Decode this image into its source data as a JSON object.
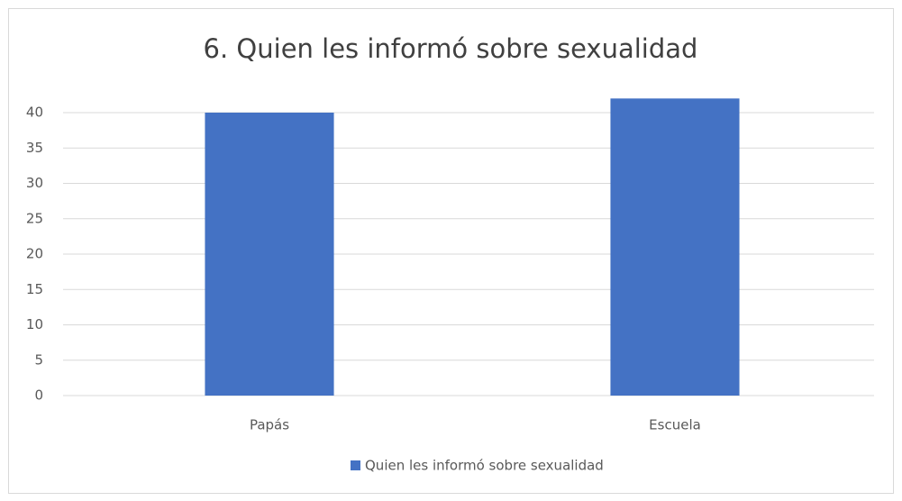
{
  "chart_data": {
    "type": "bar",
    "title": "6. Quien les informó sobre sexualidad",
    "categories": [
      "Papás",
      "Escuela"
    ],
    "series": [
      {
        "name": "Quien les informó sobre sexualidad",
        "color": "#4472c4",
        "values": [
          40,
          42
        ]
      }
    ],
    "ylim": [
      0,
      42
    ],
    "yticks": [
      0,
      5,
      10,
      15,
      20,
      25,
      30,
      35,
      40
    ],
    "grid": true,
    "legend": "bottom"
  }
}
